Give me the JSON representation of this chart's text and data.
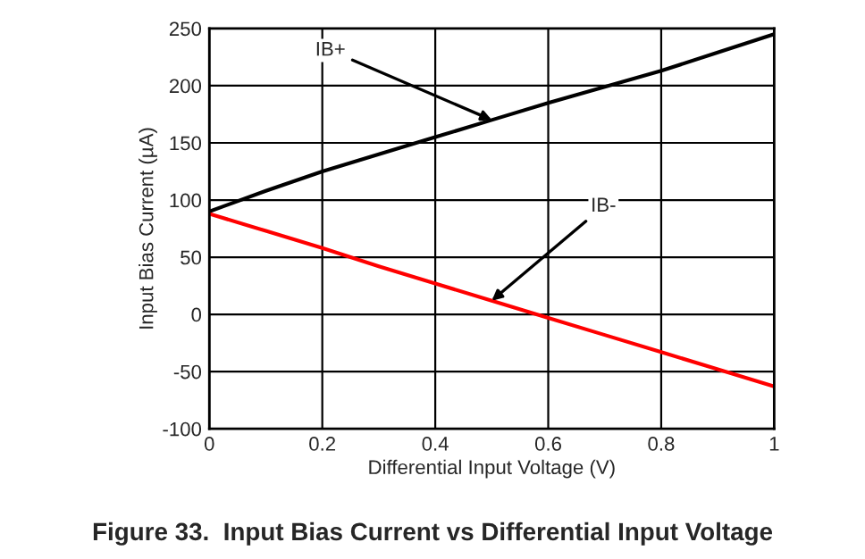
{
  "chart_data": {
    "type": "line",
    "xlabel": "Differential Input Voltage (V)",
    "ylabel": "Input Bias Current (µA)",
    "x": [
      0,
      0.1,
      0.2,
      0.3,
      0.4,
      0.5,
      0.6,
      0.7,
      0.8,
      0.9,
      1
    ],
    "series": [
      {
        "color": "#000000",
        "values": [
          90,
          108,
          125,
          140,
          155,
          170,
          185,
          199,
          213,
          229,
          245
        ]
      },
      {
        "color": "#ff0000",
        "values": [
          88,
          73,
          58,
          42,
          27,
          12,
          -3,
          -18,
          -33,
          -48,
          -63
        ]
      }
    ],
    "xlim": [
      0,
      1
    ],
    "ylim": [
      -100,
      250
    ],
    "xticks": [
      0,
      {
        "value": 0.2,
        "label": "0.2"
      },
      {
        "value": 0.4,
        "label": "0.4"
      },
      {
        "value": 0.6,
        "label": "0.6"
      },
      {
        "value": 0.8,
        "label": "0.8"
      },
      1
    ],
    "yticks": [
      -100,
      -50,
      0,
      50,
      100,
      150,
      200,
      250
    ],
    "grid": true,
    "legend": false,
    "marker": "none",
    "line_style": "solid",
    "annotations": [
      {
        "text": "IB+",
        "x": 0.5,
        "y": 170
      },
      {
        "text": "IB-",
        "x": 0.5,
        "y": 12
      },
      "Figure 33.  Input Bias Current vs Differential Input Voltage"
    ]
  }
}
